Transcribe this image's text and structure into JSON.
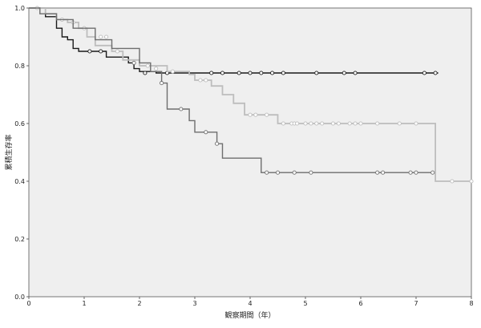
{
  "chart_data": {
    "type": "line",
    "step": true,
    "xlabel": "観察期間（年）",
    "ylabel": "累積生存率",
    "xlim": [
      0,
      8
    ],
    "ylim": [
      0,
      1
    ],
    "x_ticks": [
      "0",
      "1",
      "2",
      "3",
      "4",
      "5",
      "6",
      "7",
      "8"
    ],
    "y_ticks": [
      "0.0",
      "0.2",
      "0.4",
      "0.6",
      "0.8",
      "1.0"
    ],
    "grid": false,
    "colors": {
      "plot_bg": "#efefef",
      "series_1": "#1a1a1a",
      "series_2": "#bdbdbd",
      "series_3": "#6e6e6e"
    },
    "series": [
      {
        "steps": [
          [
            0,
            1.0
          ],
          [
            0.1,
            1.0
          ],
          [
            0.3,
            0.97
          ],
          [
            0.5,
            0.93
          ],
          [
            0.55,
            0.93
          ],
          [
            0.6,
            0.9
          ],
          [
            0.7,
            0.89
          ],
          [
            0.8,
            0.86
          ],
          [
            0.9,
            0.85
          ],
          [
            1.0,
            0.85
          ],
          [
            1.4,
            0.83
          ],
          [
            1.8,
            0.81
          ],
          [
            1.9,
            0.79
          ],
          [
            2.0,
            0.78
          ],
          [
            2.3,
            0.775
          ],
          [
            7.4,
            0.775
          ]
        ],
        "censored": [
          [
            1.1,
            0.85
          ],
          [
            1.3,
            0.85
          ],
          [
            2.1,
            0.775
          ],
          [
            2.5,
            0.775
          ],
          [
            3.3,
            0.775
          ],
          [
            3.5,
            0.775
          ],
          [
            3.8,
            0.775
          ],
          [
            4.0,
            0.775
          ],
          [
            4.2,
            0.775
          ],
          [
            4.4,
            0.775
          ],
          [
            4.6,
            0.775
          ],
          [
            5.2,
            0.775
          ],
          [
            5.7,
            0.775
          ],
          [
            5.9,
            0.775
          ],
          [
            7.15,
            0.775
          ],
          [
            7.35,
            0.775
          ]
        ]
      },
      {
        "steps": [
          [
            0,
            1.0
          ],
          [
            0.3,
            0.98
          ],
          [
            0.5,
            0.96
          ],
          [
            0.7,
            0.95
          ],
          [
            0.9,
            0.93
          ],
          [
            1.05,
            0.9
          ],
          [
            1.2,
            0.87
          ],
          [
            1.5,
            0.85
          ],
          [
            1.7,
            0.82
          ],
          [
            2.0,
            0.8
          ],
          [
            2.5,
            0.78
          ],
          [
            2.9,
            0.77
          ],
          [
            3.0,
            0.75
          ],
          [
            3.3,
            0.73
          ],
          [
            3.5,
            0.7
          ],
          [
            3.7,
            0.67
          ],
          [
            3.9,
            0.63
          ],
          [
            4.5,
            0.6
          ],
          [
            7.35,
            0.6
          ],
          [
            7.35,
            0.4
          ],
          [
            8.0,
            0.4
          ]
        ],
        "censored": [
          [
            0.15,
            1.0
          ],
          [
            0.6,
            0.96
          ],
          [
            0.8,
            0.95
          ],
          [
            1.0,
            0.93
          ],
          [
            1.3,
            0.9
          ],
          [
            1.4,
            0.9
          ],
          [
            1.6,
            0.85
          ],
          [
            2.15,
            0.8
          ],
          [
            2.3,
            0.79
          ],
          [
            2.6,
            0.78
          ],
          [
            3.1,
            0.75
          ],
          [
            3.2,
            0.75
          ],
          [
            4.0,
            0.63
          ],
          [
            4.1,
            0.63
          ],
          [
            4.3,
            0.63
          ],
          [
            4.6,
            0.6
          ],
          [
            4.75,
            0.6
          ],
          [
            4.8,
            0.6
          ],
          [
            4.85,
            0.6
          ],
          [
            5.0,
            0.6
          ],
          [
            5.1,
            0.6
          ],
          [
            5.2,
            0.6
          ],
          [
            5.3,
            0.6
          ],
          [
            5.5,
            0.6
          ],
          [
            5.6,
            0.6
          ],
          [
            5.8,
            0.6
          ],
          [
            5.9,
            0.6
          ],
          [
            6.0,
            0.6
          ],
          [
            6.3,
            0.6
          ],
          [
            6.7,
            0.6
          ],
          [
            7.0,
            0.6
          ],
          [
            7.65,
            0.4
          ],
          [
            8.0,
            0.4
          ]
        ]
      },
      {
        "steps": [
          [
            0,
            1.0
          ],
          [
            0.2,
            0.98
          ],
          [
            0.5,
            0.96
          ],
          [
            0.8,
            0.93
          ],
          [
            1.2,
            0.89
          ],
          [
            1.5,
            0.86
          ],
          [
            2.0,
            0.81
          ],
          [
            2.2,
            0.78
          ],
          [
            2.4,
            0.74
          ],
          [
            2.5,
            0.65
          ],
          [
            2.9,
            0.61
          ],
          [
            3.0,
            0.57
          ],
          [
            3.4,
            0.53
          ],
          [
            3.5,
            0.48
          ],
          [
            4.2,
            0.43
          ],
          [
            7.3,
            0.43
          ]
        ],
        "censored": [
          [
            1.9,
            0.81
          ],
          [
            2.4,
            0.74
          ],
          [
            2.75,
            0.65
          ],
          [
            3.2,
            0.57
          ],
          [
            3.4,
            0.53
          ],
          [
            4.3,
            0.43
          ],
          [
            4.5,
            0.43
          ],
          [
            4.8,
            0.43
          ],
          [
            5.1,
            0.43
          ],
          [
            6.3,
            0.43
          ],
          [
            6.4,
            0.43
          ],
          [
            6.9,
            0.43
          ],
          [
            7.0,
            0.43
          ],
          [
            7.3,
            0.43
          ]
        ]
      }
    ]
  }
}
